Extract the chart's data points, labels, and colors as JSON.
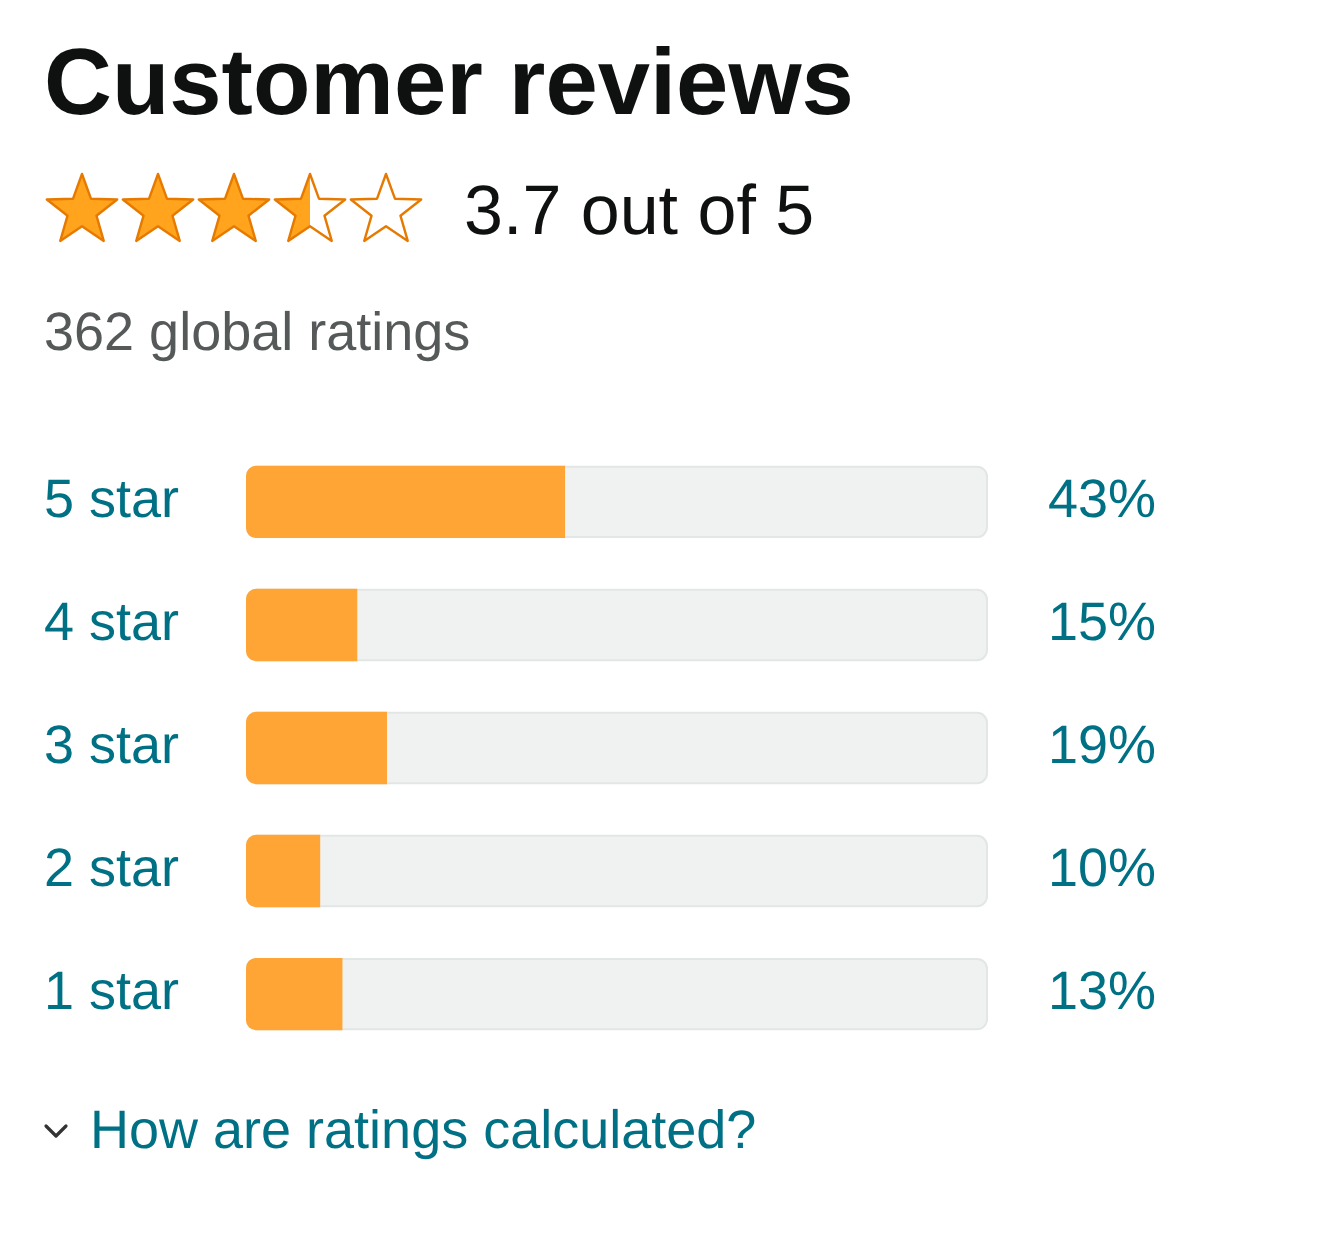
{
  "chart_data": {
    "type": "bar",
    "orientation": "horizontal",
    "title": "Customer reviews",
    "subtitle": "3.7 out of 5",
    "annotations": [
      "362 global ratings",
      "How are ratings calculated?"
    ],
    "categories": [
      "5 star",
      "4 star",
      "3 star",
      "2 star",
      "1 star"
    ],
    "values": [
      43,
      15,
      19,
      10,
      13
    ],
    "value_labels": [
      "43%",
      "15%",
      "19%",
      "10%",
      "13%"
    ],
    "color": "#fea535",
    "xlim": [
      0,
      100
    ],
    "tick_labels": "y"
  }
}
